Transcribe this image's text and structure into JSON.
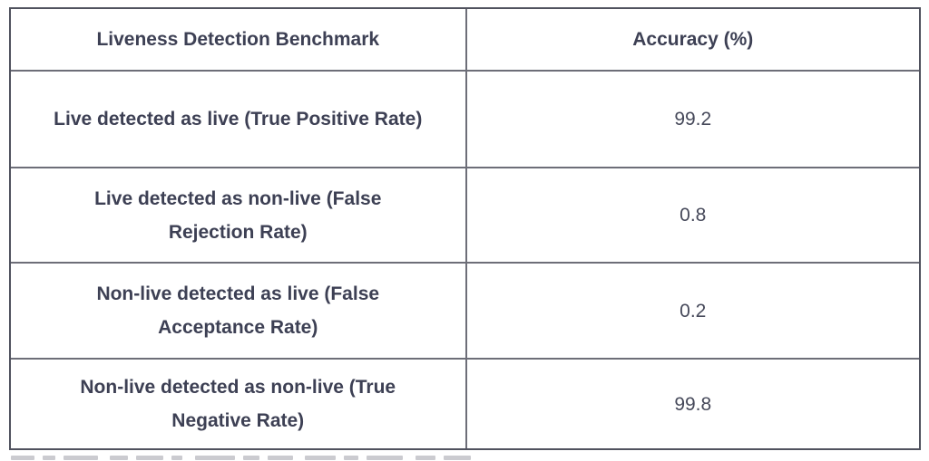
{
  "colors": {
    "background": "#ffffff",
    "text": "#3d4054",
    "value_text": "#46495a",
    "border_outer": "#50525e",
    "border_inner": "#6d6e78"
  },
  "table": {
    "header": {
      "metric": "Liveness Detection Benchmark",
      "accuracy": "Accuracy (%)"
    },
    "rows": [
      {
        "label": "Live detected as live (True Positive Rate)",
        "value": "99.2"
      },
      {
        "label": "Live detected as non-live (False Rejection Rate)",
        "value": "0.8"
      },
      {
        "label": "Non-live detected as live (False Acceptance Rate)",
        "value": "0.2"
      },
      {
        "label": "Non-live detected as non-live (True Negative Rate)",
        "value": "99.8"
      }
    ]
  },
  "chart_data": {
    "type": "table",
    "title": "Liveness Detection Benchmark",
    "columns": [
      "Liveness Detection Benchmark",
      "Accuracy (%)"
    ],
    "rows": [
      [
        "Live detected as live (True Positive Rate)",
        99.2
      ],
      [
        "Live detected as non-live (False Rejection Rate)",
        0.8
      ],
      [
        "Non-live detected as live (False Acceptance Rate)",
        0.2
      ],
      [
        "Non-live detected as non-live (True Negative Rate)",
        99.8
      ]
    ]
  }
}
